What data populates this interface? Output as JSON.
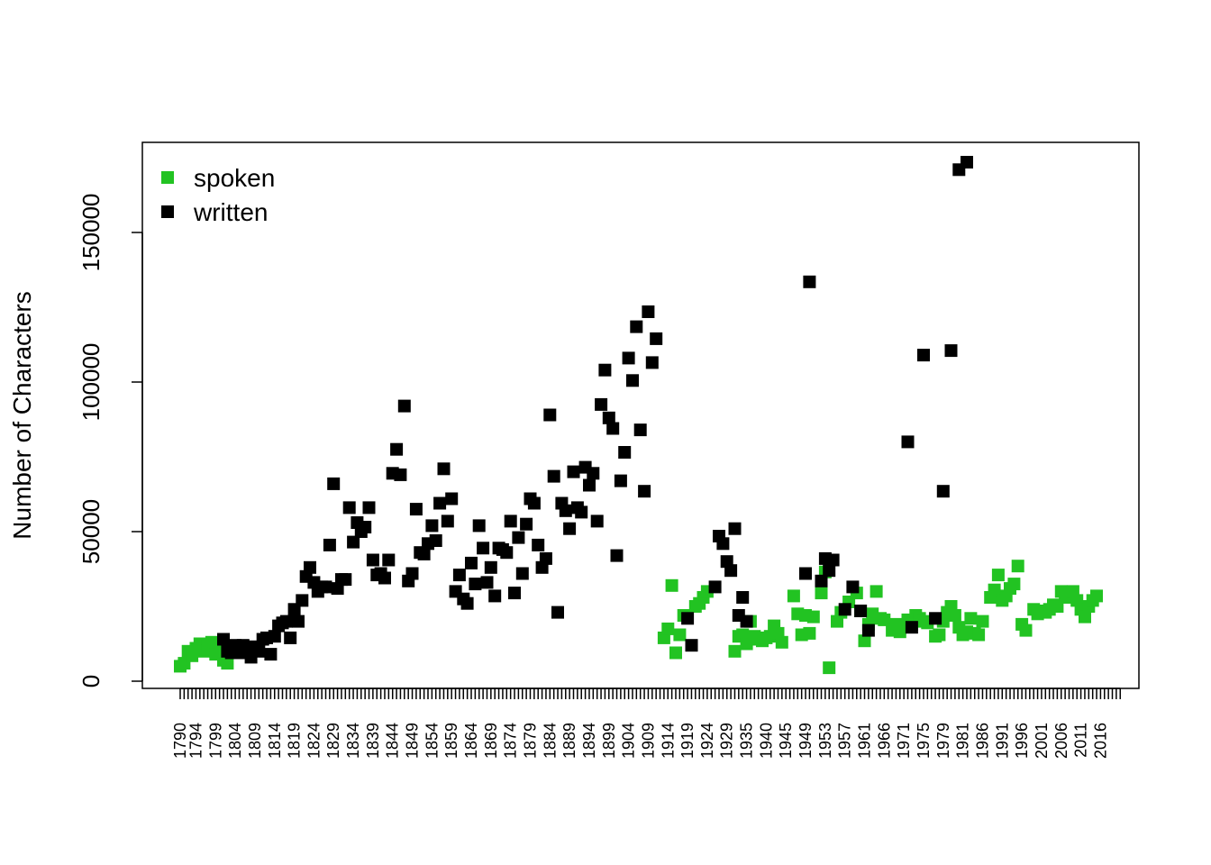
{
  "chart_data": {
    "type": "scatter",
    "title": "",
    "xlabel": "",
    "ylabel": "Number of Characters",
    "ylim": [
      0,
      175000
    ],
    "y_ticks": [
      0,
      50000,
      100000,
      150000
    ],
    "y_tick_labels": [
      "0",
      "50000",
      "100000",
      "150000"
    ],
    "x_tick_labels": [
      "1790",
      "1794",
      "1799",
      "1804",
      "1809",
      "1814",
      "1819",
      "1824",
      "1829",
      "1834",
      "1839",
      "1844",
      "1849",
      "1854",
      "1859",
      "1864",
      "1869",
      "1874",
      "1879",
      "1884",
      "1889",
      "1894",
      "1899",
      "1904",
      "1909",
      "1914",
      "1919",
      "1924",
      "1929",
      "1935",
      "1940",
      "1945",
      "1949",
      "1953",
      "1957",
      "1961",
      "1966",
      "1971",
      "1975",
      "1979",
      "1981",
      "1986",
      "1991",
      "1996",
      "2001",
      "2006",
      "2011",
      "2016"
    ],
    "x_tick_label_index": [
      1,
      5,
      10,
      15,
      20,
      25,
      30,
      35,
      40,
      45,
      50,
      55,
      60,
      65,
      70,
      75,
      80,
      85,
      90,
      95,
      100,
      105,
      110,
      115,
      120,
      125,
      130,
      135,
      140,
      145,
      150,
      155,
      160,
      165,
      170,
      175,
      180,
      185,
      190,
      195,
      200,
      205,
      210,
      215,
      220,
      225,
      230,
      235
    ],
    "x_tick_count": 240,
    "legend": {
      "position": "top-left",
      "entries": [
        "spoken",
        "written"
      ]
    },
    "colors": {
      "spoken": "#22c322",
      "written": "#000000"
    },
    "grid": false,
    "series": [
      {
        "name": "spoken",
        "points": [
          [
            1,
            5000
          ],
          [
            2,
            6000
          ],
          [
            3,
            10000
          ],
          [
            4,
            8500
          ],
          [
            5,
            11000
          ],
          [
            6,
            12500
          ],
          [
            7,
            10000
          ],
          [
            8,
            12000
          ],
          [
            9,
            13000
          ],
          [
            10,
            9000
          ],
          [
            11,
            11000
          ],
          [
            12,
            7000
          ],
          [
            13,
            6000
          ],
          [
            124,
            14500
          ],
          [
            125,
            17500
          ],
          [
            126,
            32000
          ],
          [
            127,
            9500
          ],
          [
            128,
            15500
          ],
          [
            129,
            22000
          ],
          [
            132,
            25000
          ],
          [
            133,
            26000
          ],
          [
            134,
            28000
          ],
          [
            135,
            30000
          ],
          [
            142,
            10000
          ],
          [
            143,
            15000
          ],
          [
            144,
            15500
          ],
          [
            145,
            12500
          ],
          [
            146,
            20000
          ],
          [
            147,
            15000
          ],
          [
            148,
            14000
          ],
          [
            149,
            13500
          ],
          [
            150,
            14500
          ],
          [
            151,
            15000
          ],
          [
            152,
            18500
          ],
          [
            153,
            16000
          ],
          [
            154,
            13000
          ],
          [
            157,
            28500
          ],
          [
            158,
            22500
          ],
          [
            159,
            15500
          ],
          [
            160,
            22000
          ],
          [
            161,
            16000
          ],
          [
            162,
            21500
          ],
          [
            164,
            29500
          ],
          [
            165,
            36500
          ],
          [
            166,
            4500
          ],
          [
            168,
            20000
          ],
          [
            169,
            23000
          ],
          [
            171,
            26500
          ],
          [
            173,
            29500
          ],
          [
            174,
            23500
          ],
          [
            175,
            13500
          ],
          [
            176,
            19000
          ],
          [
            177,
            22500
          ],
          [
            178,
            30000
          ],
          [
            179,
            21000
          ],
          [
            180,
            20500
          ],
          [
            182,
            17000
          ],
          [
            183,
            19000
          ],
          [
            184,
            16500
          ],
          [
            186,
            20500
          ],
          [
            187,
            19000
          ],
          [
            188,
            22000
          ],
          [
            189,
            21000
          ],
          [
            190,
            20000
          ],
          [
            191,
            19500
          ],
          [
            193,
            15000
          ],
          [
            194,
            15500
          ],
          [
            195,
            20000
          ],
          [
            196,
            23000
          ],
          [
            197,
            25000
          ],
          [
            198,
            22000
          ],
          [
            199,
            18000
          ],
          [
            200,
            15500
          ],
          [
            201,
            16500
          ],
          [
            202,
            21000
          ],
          [
            203,
            16000
          ],
          [
            204,
            15500
          ],
          [
            205,
            20000
          ],
          [
            207,
            28000
          ],
          [
            208,
            30500
          ],
          [
            209,
            35500
          ],
          [
            210,
            27000
          ],
          [
            211,
            28500
          ],
          [
            212,
            31000
          ],
          [
            213,
            32500
          ],
          [
            214,
            38500
          ],
          [
            215,
            19000
          ],
          [
            216,
            17000
          ],
          [
            218,
            24000
          ],
          [
            219,
            22500
          ],
          [
            220,
            23500
          ],
          [
            221,
            23000
          ],
          [
            222,
            24000
          ],
          [
            223,
            25500
          ],
          [
            224,
            25000
          ],
          [
            225,
            30000
          ],
          [
            226,
            29000
          ],
          [
            227,
            28000
          ],
          [
            228,
            30000
          ],
          [
            229,
            27000
          ],
          [
            230,
            24000
          ],
          [
            231,
            21500
          ],
          [
            232,
            25000
          ],
          [
            233,
            27000
          ],
          [
            234,
            28500
          ]
        ]
      },
      {
        "name": "written",
        "points": [
          [
            12,
            14000
          ],
          [
            13,
            10000
          ],
          [
            14,
            9500
          ],
          [
            15,
            12000
          ],
          [
            16,
            9500
          ],
          [
            17,
            12000
          ],
          [
            18,
            11000
          ],
          [
            19,
            8000
          ],
          [
            20,
            11500
          ],
          [
            21,
            10000
          ],
          [
            22,
            14000
          ],
          [
            23,
            14500
          ],
          [
            24,
            9000
          ],
          [
            25,
            15000
          ],
          [
            26,
            18500
          ],
          [
            27,
            19500
          ],
          [
            28,
            20000
          ],
          [
            29,
            14500
          ],
          [
            30,
            24000
          ],
          [
            31,
            20000
          ],
          [
            32,
            27000
          ],
          [
            33,
            35000
          ],
          [
            34,
            38000
          ],
          [
            35,
            33000
          ],
          [
            36,
            30000
          ],
          [
            37,
            31500
          ],
          [
            38,
            31500
          ],
          [
            39,
            45500
          ],
          [
            40,
            66000
          ],
          [
            41,
            31000
          ],
          [
            42,
            34000
          ],
          [
            43,
            34000
          ],
          [
            44,
            58000
          ],
          [
            45,
            46500
          ],
          [
            46,
            53000
          ],
          [
            47,
            50000
          ],
          [
            48,
            51500
          ],
          [
            49,
            58000
          ],
          [
            50,
            40500
          ],
          [
            51,
            35500
          ],
          [
            52,
            36000
          ],
          [
            53,
            34500
          ],
          [
            54,
            40500
          ],
          [
            55,
            69500
          ],
          [
            56,
            77500
          ],
          [
            57,
            69000
          ],
          [
            58,
            92000
          ],
          [
            59,
            33500
          ],
          [
            60,
            36000
          ],
          [
            61,
            57500
          ],
          [
            62,
            43000
          ],
          [
            63,
            42500
          ],
          [
            64,
            46000
          ],
          [
            65,
            52000
          ],
          [
            66,
            47000
          ],
          [
            67,
            59500
          ],
          [
            68,
            71000
          ],
          [
            69,
            53500
          ],
          [
            70,
            61000
          ],
          [
            71,
            30000
          ],
          [
            72,
            35500
          ],
          [
            73,
            27500
          ],
          [
            74,
            26000
          ],
          [
            75,
            39500
          ],
          [
            76,
            32500
          ],
          [
            77,
            52000
          ],
          [
            78,
            44500
          ],
          [
            79,
            33000
          ],
          [
            80,
            38000
          ],
          [
            81,
            28500
          ],
          [
            82,
            44500
          ],
          [
            83,
            44000
          ],
          [
            84,
            43000
          ],
          [
            85,
            53500
          ],
          [
            86,
            29500
          ],
          [
            87,
            48000
          ],
          [
            88,
            36000
          ],
          [
            89,
            52500
          ],
          [
            90,
            61000
          ],
          [
            91,
            59500
          ],
          [
            92,
            45500
          ],
          [
            93,
            38000
          ],
          [
            94,
            41000
          ],
          [
            95,
            89000
          ],
          [
            96,
            68500
          ],
          [
            97,
            23000
          ],
          [
            98,
            59500
          ],
          [
            99,
            57000
          ],
          [
            100,
            51000
          ],
          [
            101,
            70000
          ],
          [
            102,
            58000
          ],
          [
            103,
            56500
          ],
          [
            104,
            71500
          ],
          [
            105,
            65500
          ],
          [
            106,
            69500
          ],
          [
            107,
            53500
          ],
          [
            108,
            92500
          ],
          [
            109,
            104000
          ],
          [
            110,
            88000
          ],
          [
            111,
            84500
          ],
          [
            112,
            42000
          ],
          [
            113,
            67000
          ],
          [
            114,
            76500
          ],
          [
            115,
            108000
          ],
          [
            116,
            100500
          ],
          [
            117,
            118500
          ],
          [
            118,
            84000
          ],
          [
            119,
            63500
          ],
          [
            120,
            123500
          ],
          [
            121,
            106500
          ],
          [
            122,
            114500
          ],
          [
            130,
            21000
          ],
          [
            131,
            12000
          ],
          [
            137,
            31500
          ],
          [
            138,
            48500
          ],
          [
            139,
            46000
          ],
          [
            140,
            40000
          ],
          [
            141,
            37000
          ],
          [
            142,
            51000
          ],
          [
            143,
            22000
          ],
          [
            144,
            28000
          ],
          [
            145,
            20000
          ],
          [
            160,
            36000
          ],
          [
            161,
            133500
          ],
          [
            164,
            33500
          ],
          [
            165,
            41000
          ],
          [
            166,
            37000
          ],
          [
            167,
            40500
          ],
          [
            170,
            24000
          ],
          [
            172,
            31500
          ],
          [
            174,
            23500
          ],
          [
            176,
            17000
          ],
          [
            186,
            80000
          ],
          [
            187,
            18000
          ],
          [
            190,
            109000
          ],
          [
            193,
            21000
          ],
          [
            195,
            63500
          ],
          [
            197,
            110500
          ],
          [
            199,
            171000
          ],
          [
            201,
            173500
          ]
        ]
      }
    ]
  }
}
